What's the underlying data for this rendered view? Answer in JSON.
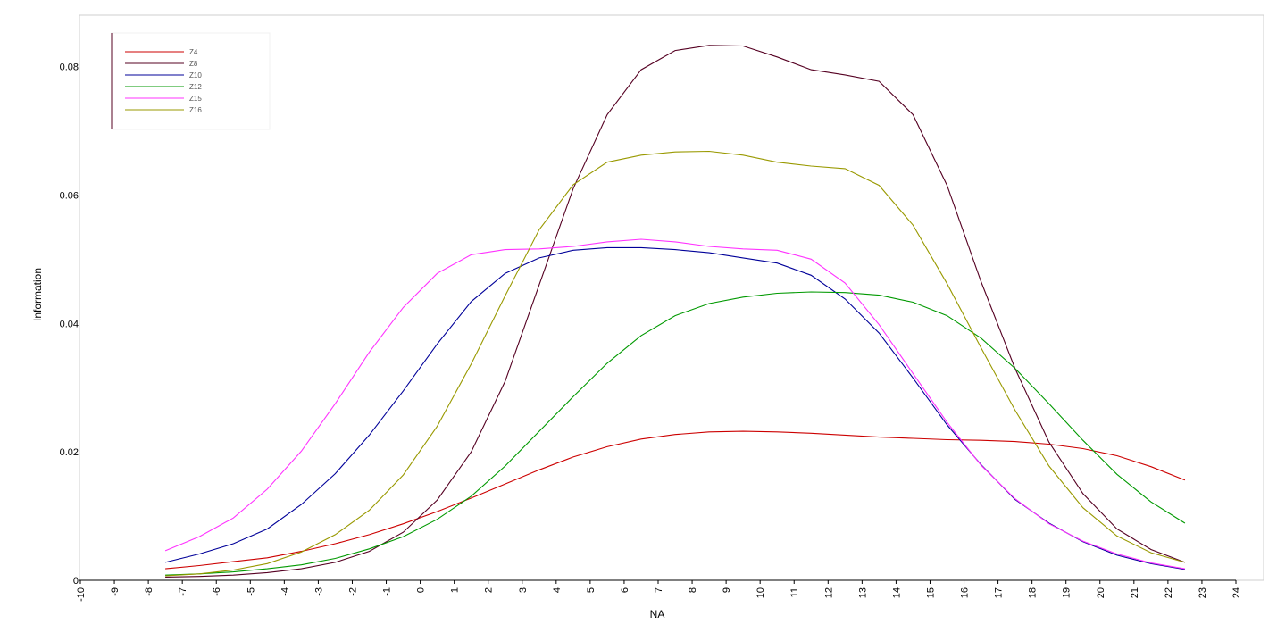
{
  "chart_data": {
    "type": "line",
    "xlabel": "NA",
    "ylabel": "Information",
    "xlim": [
      -10,
      24
    ],
    "ylim": [
      0,
      0.088
    ],
    "x_ticks": [
      "-10",
      "-9",
      "-8",
      "-7",
      "-6",
      "-5",
      "-4",
      "-3",
      "-2",
      "-1",
      "0",
      "1",
      "2",
      "3",
      "4",
      "5",
      "6",
      "7",
      "8",
      "9",
      "10",
      "11",
      "12",
      "13",
      "14",
      "15",
      "16",
      "17",
      "18",
      "19",
      "20",
      "21",
      "22",
      "23",
      "24"
    ],
    "y_ticks": [
      {
        "value": 0,
        "label": "0"
      },
      {
        "value": 0.02,
        "label": "0.02"
      },
      {
        "value": 0.04,
        "label": "0.04"
      },
      {
        "value": 0.06,
        "label": "0.06"
      },
      {
        "value": 0.08,
        "label": "0.08"
      }
    ],
    "x": [
      -7.5,
      -6.5,
      -5.5,
      -4.5,
      -3.5,
      -2.5,
      -1.5,
      -0.5,
      0.5,
      1.5,
      2.5,
      3.5,
      4.5,
      5.5,
      6.5,
      7.5,
      8.5,
      9.5,
      10.5,
      11.5,
      12.5,
      13.5,
      14.5,
      15.5,
      16.5,
      17.5,
      18.5,
      19.5,
      20.5,
      21.5,
      22.5
    ],
    "legend_position": "top-left",
    "grid": false,
    "series": [
      {
        "name": "Z4",
        "color": "#cc0000",
        "values": [
          0.0018,
          0.0023,
          0.0029,
          0.0035,
          0.0045,
          0.0057,
          0.0071,
          0.0088,
          0.0107,
          0.0128,
          0.015,
          0.0172,
          0.0192,
          0.0208,
          0.022,
          0.0227,
          0.0231,
          0.0232,
          0.0231,
          0.0229,
          0.0226,
          0.0223,
          0.0221,
          0.0219,
          0.0218,
          0.0216,
          0.0212,
          0.0205,
          0.0194,
          0.0177,
          0.0156
        ]
      },
      {
        "name": "Z8",
        "color": "#550022",
        "values": [
          0.0005,
          0.0006,
          0.0008,
          0.0012,
          0.0018,
          0.0028,
          0.0045,
          0.0075,
          0.0125,
          0.02,
          0.031,
          0.046,
          0.061,
          0.0725,
          0.0795,
          0.0825,
          0.0833,
          0.0832,
          0.0815,
          0.0795,
          0.0787,
          0.0777,
          0.0725,
          0.0615,
          0.0465,
          0.033,
          0.0215,
          0.0135,
          0.008,
          0.0048,
          0.0028
        ]
      },
      {
        "name": "Z10",
        "color": "#000099",
        "values": [
          0.0028,
          0.0041,
          0.0057,
          0.008,
          0.0118,
          0.0166,
          0.0226,
          0.0295,
          0.0368,
          0.0434,
          0.0478,
          0.0502,
          0.0514,
          0.0518,
          0.0518,
          0.0515,
          0.051,
          0.0502,
          0.0494,
          0.0475,
          0.0438,
          0.0385,
          0.0315,
          0.0242,
          0.018,
          0.0126,
          0.0089,
          0.006,
          0.0039,
          0.0026,
          0.0017
        ]
      },
      {
        "name": "Z12",
        "color": "#009900",
        "values": [
          0.0008,
          0.001,
          0.0013,
          0.0018,
          0.0024,
          0.0034,
          0.0049,
          0.0068,
          0.0095,
          0.0131,
          0.0178,
          0.0232,
          0.0286,
          0.0338,
          0.0381,
          0.0412,
          0.0431,
          0.0441,
          0.0447,
          0.0449,
          0.0448,
          0.0444,
          0.0433,
          0.0412,
          0.0377,
          0.033,
          0.0275,
          0.0218,
          0.0165,
          0.0122,
          0.0089
        ]
      },
      {
        "name": "Z15",
        "color": "#ff33ff",
        "values": [
          0.0046,
          0.0068,
          0.0097,
          0.0142,
          0.0201,
          0.0275,
          0.0355,
          0.0425,
          0.0478,
          0.0507,
          0.0515,
          0.0516,
          0.052,
          0.0527,
          0.0531,
          0.0527,
          0.052,
          0.0516,
          0.0514,
          0.05,
          0.0463,
          0.0398,
          0.0322,
          0.0246,
          0.0179,
          0.0127,
          0.0088,
          0.0061,
          0.0041,
          0.0027,
          0.0018
        ]
      },
      {
        "name": "Z16",
        "color": "#999900",
        "values": [
          0.0007,
          0.001,
          0.0016,
          0.0026,
          0.0044,
          0.0071,
          0.0109,
          0.0164,
          0.024,
          0.0337,
          0.0443,
          0.0546,
          0.0616,
          0.0651,
          0.0662,
          0.0667,
          0.0668,
          0.0662,
          0.0651,
          0.0645,
          0.0641,
          0.0615,
          0.0553,
          0.0462,
          0.0362,
          0.0265,
          0.0178,
          0.0113,
          0.0069,
          0.0043,
          0.0028
        ]
      }
    ],
    "legend": [
      "Z4",
      "Z8",
      "Z10",
      "Z12",
      "Z15",
      "Z16"
    ]
  }
}
